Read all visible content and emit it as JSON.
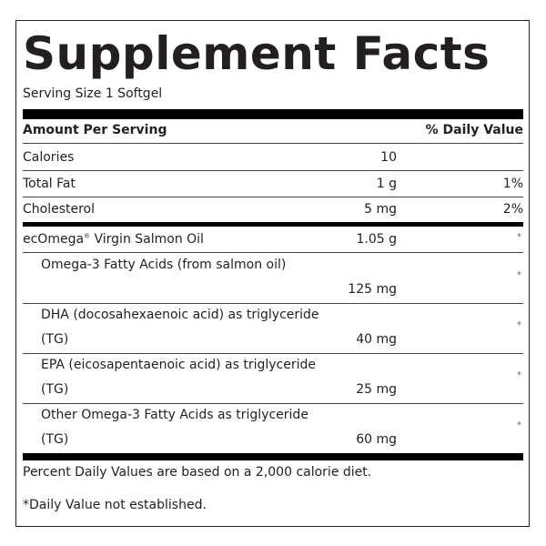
{
  "title": "Supplement Facts",
  "serving_size": "Serving Size 1 Softgel",
  "header": {
    "amount": "Amount Per Serving",
    "daily_value": "% Daily Value"
  },
  "rows": [
    {
      "name": "Calories",
      "amount": "10",
      "dv": ""
    },
    {
      "name": "Total Fat",
      "amount": "1 g",
      "dv": "1%"
    },
    {
      "name": "Cholesterol",
      "amount": "5 mg",
      "dv": "2%"
    },
    {
      "name": "ecOmega",
      "mark": "®",
      "name_rest": " Virgin Salmon Oil",
      "amount": "1.05 g",
      "dv": "*"
    },
    {
      "name": "Omega-3 Fatty Acids (from salmon oil)",
      "name2": "",
      "amount": "125 mg",
      "dv": "*"
    },
    {
      "name": "DHA (docosahexaenoic acid) as triglyceride",
      "name2": "(TG)",
      "amount": "40 mg",
      "dv": "*"
    },
    {
      "name": "EPA (eicosapentaenoic acid) as triglyceride",
      "name2": "(TG)",
      "amount": "25 mg",
      "dv": "*"
    },
    {
      "name": "Other Omega-3 Fatty Acids as triglyceride",
      "name2": "(TG)",
      "amount": "60 mg",
      "dv": "*"
    }
  ],
  "footnotes": {
    "percent": "Percent Daily Values are based on a 2,000 calorie diet.",
    "not_established": "*Daily Value not established."
  }
}
